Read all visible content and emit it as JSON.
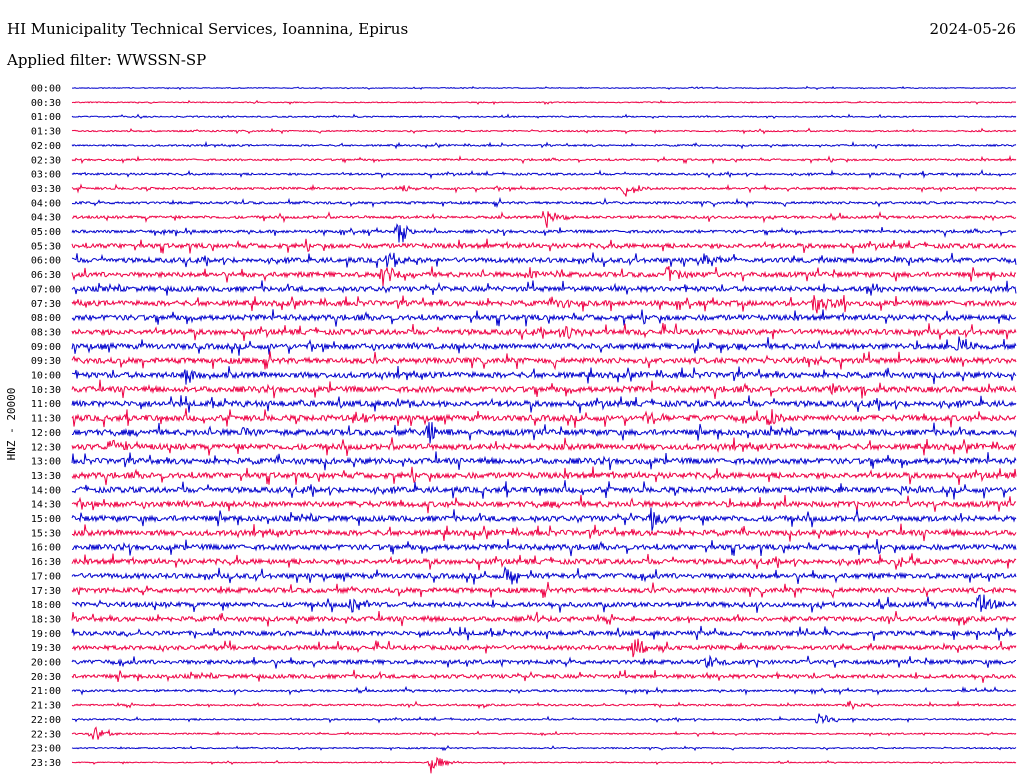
{
  "header": {
    "title": "HI Municipality Technical Services, Ioannina, Epirus",
    "date": "2024-05-26",
    "filter": "Applied filter: WWSSN-SP"
  },
  "chart_data": {
    "type": "line",
    "title": "HI Municipality Technical Services, Ioannina, Epirus",
    "ylabel": "HNZ - 20000",
    "xlabel": "",
    "row_labels": [
      "00:00",
      "00:30",
      "01:00",
      "01:30",
      "02:00",
      "02:30",
      "03:00",
      "03:30",
      "04:00",
      "04:30",
      "05:00",
      "05:30",
      "06:00",
      "06:30",
      "07:00",
      "07:30",
      "08:00",
      "08:30",
      "09:00",
      "09:30",
      "10:00",
      "10:30",
      "11:00",
      "11:30",
      "12:00",
      "12:30",
      "13:00",
      "13:30",
      "14:00",
      "14:30",
      "15:00",
      "15:30",
      "16:00",
      "16:30",
      "17:00",
      "17:30",
      "18:00",
      "18:30",
      "19:00",
      "19:30",
      "20:00",
      "20:30",
      "21:00",
      "21:30",
      "22:00",
      "22:30",
      "23:00",
      "23:30"
    ],
    "colors": [
      "#0000cc",
      "#ee0044"
    ],
    "grid": false,
    "legend": "none"
  }
}
